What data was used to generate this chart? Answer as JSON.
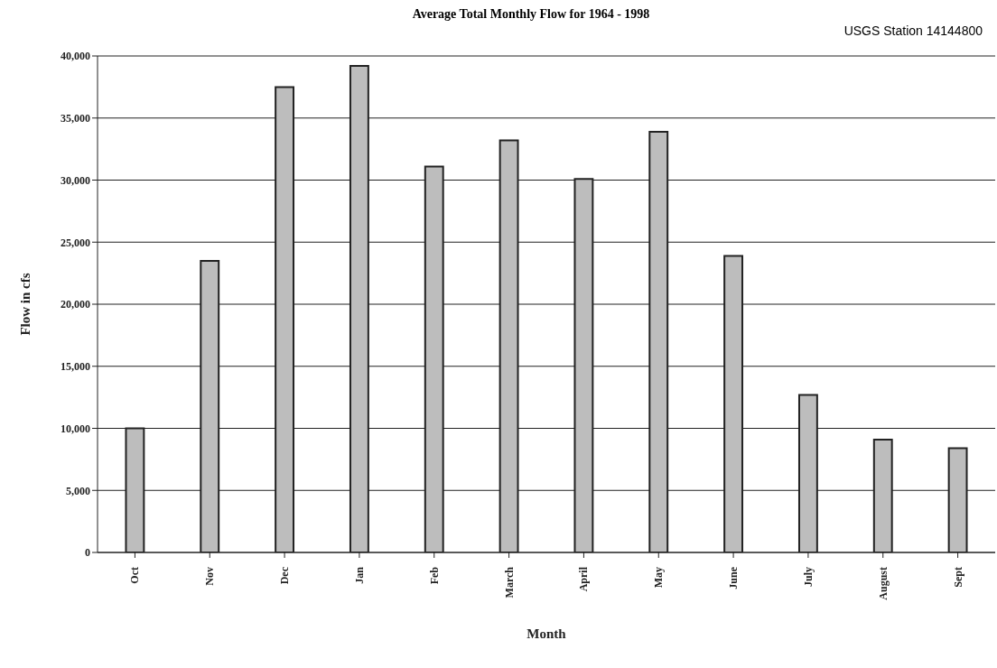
{
  "chart_data": {
    "type": "bar",
    "title": "Average Total Monthly Flow for 1964 - 1998",
    "subtitle": "USGS Station 14144800",
    "xlabel": "Month",
    "ylabel": "Flow in cfs",
    "categories": [
      "Oct",
      "Nov",
      "Dec",
      "Jan",
      "Feb",
      "March",
      "April",
      "May",
      "June",
      "July",
      "August",
      "Sept"
    ],
    "values": [
      10000,
      23500,
      37500,
      39200,
      31100,
      33200,
      30100,
      33900,
      23900,
      12700,
      9100,
      8400
    ],
    "color": "#bdbdbd",
    "ylim": [
      0,
      40000
    ],
    "yticks": [
      {
        "value": 0,
        "label": "0"
      },
      {
        "value": 5000,
        "label": "5,000"
      },
      {
        "value": 10000,
        "label": "10,000"
      },
      {
        "value": 15000,
        "label": "15,000"
      },
      {
        "value": 20000,
        "label": "20,000"
      },
      {
        "value": 25000,
        "label": "25,000"
      },
      {
        "value": 30000,
        "label": "30,000"
      },
      {
        "value": 35000,
        "label": "35,000"
      },
      {
        "value": 40000,
        "label": "40,000"
      }
    ],
    "grid": "y",
    "legend": false
  }
}
